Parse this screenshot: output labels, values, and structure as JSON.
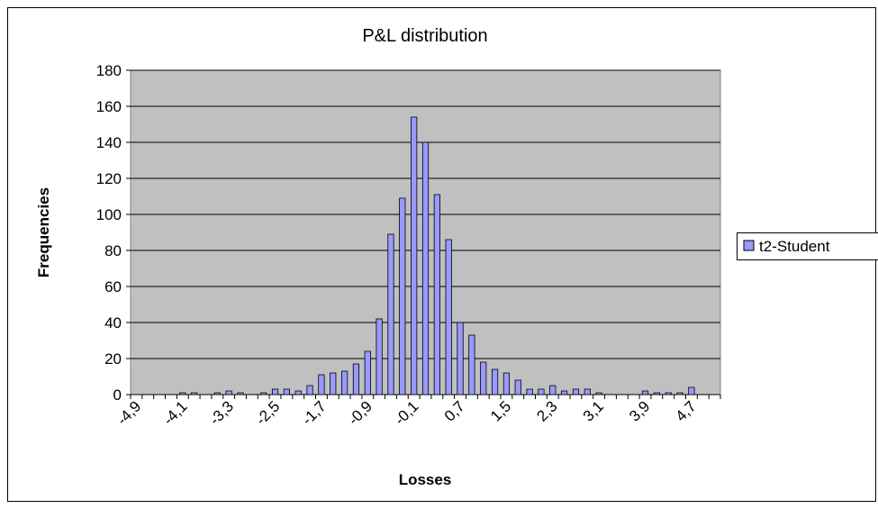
{
  "chart_data": {
    "type": "bar",
    "title": "P&L distribution",
    "x_label": "Losses",
    "y_label": "Frequencies",
    "categories": [
      "-4,9",
      null,
      null,
      null,
      "-4,1",
      null,
      null,
      null,
      "-3,3",
      null,
      null,
      null,
      "-2,5",
      null,
      null,
      null,
      "-1,7",
      null,
      null,
      null,
      "-0,9",
      null,
      null,
      null,
      "-0,1",
      null,
      null,
      null,
      "0,7",
      null,
      null,
      null,
      "1,5",
      null,
      null,
      null,
      "2,3",
      null,
      null,
      null,
      "3,1",
      null,
      null,
      null,
      "3,9",
      null,
      null,
      null,
      "4,7",
      null,
      null
    ],
    "series": [
      {
        "name": "t2-Student",
        "color": "#9999ff",
        "values": [
          0,
          0,
          0,
          0,
          1,
          1,
          0,
          1,
          2,
          1,
          0,
          1,
          3,
          3,
          2,
          5,
          11,
          12,
          13,
          17,
          24,
          42,
          89,
          109,
          154,
          140,
          111,
          86,
          40,
          33,
          18,
          14,
          12,
          8,
          3,
          3,
          5,
          2,
          3,
          3,
          1,
          0,
          0,
          0,
          2,
          1,
          1,
          1,
          4,
          0,
          0
        ]
      }
    ],
    "ylim": [
      0,
      180
    ],
    "yticks": [
      0,
      20,
      40,
      60,
      80,
      100,
      120,
      140,
      160,
      180
    ],
    "grid": true,
    "legend": "right"
  }
}
